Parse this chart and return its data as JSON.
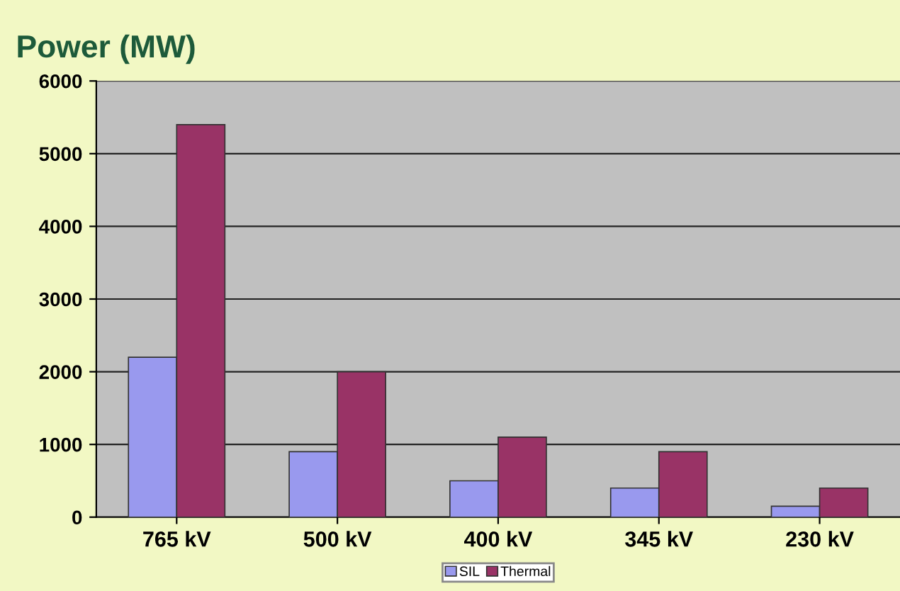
{
  "chart_data": {
    "type": "bar",
    "title": "Power (MW)",
    "categories": [
      "765 kV",
      "500 kV",
      "400 kV",
      "345 kV",
      "230 kV"
    ],
    "series": [
      {
        "name": "SIL",
        "color": "#9999ee",
        "values": [
          2200,
          900,
          500,
          400,
          150
        ]
      },
      {
        "name": "Thermal",
        "color": "#993366",
        "values": [
          5400,
          2000,
          1100,
          900,
          400
        ]
      }
    ],
    "ylim": [
      0,
      6000
    ],
    "yticks": [
      0,
      1000,
      2000,
      3000,
      4000,
      5000,
      6000
    ],
    "grid": "y",
    "legend": "bottom"
  }
}
